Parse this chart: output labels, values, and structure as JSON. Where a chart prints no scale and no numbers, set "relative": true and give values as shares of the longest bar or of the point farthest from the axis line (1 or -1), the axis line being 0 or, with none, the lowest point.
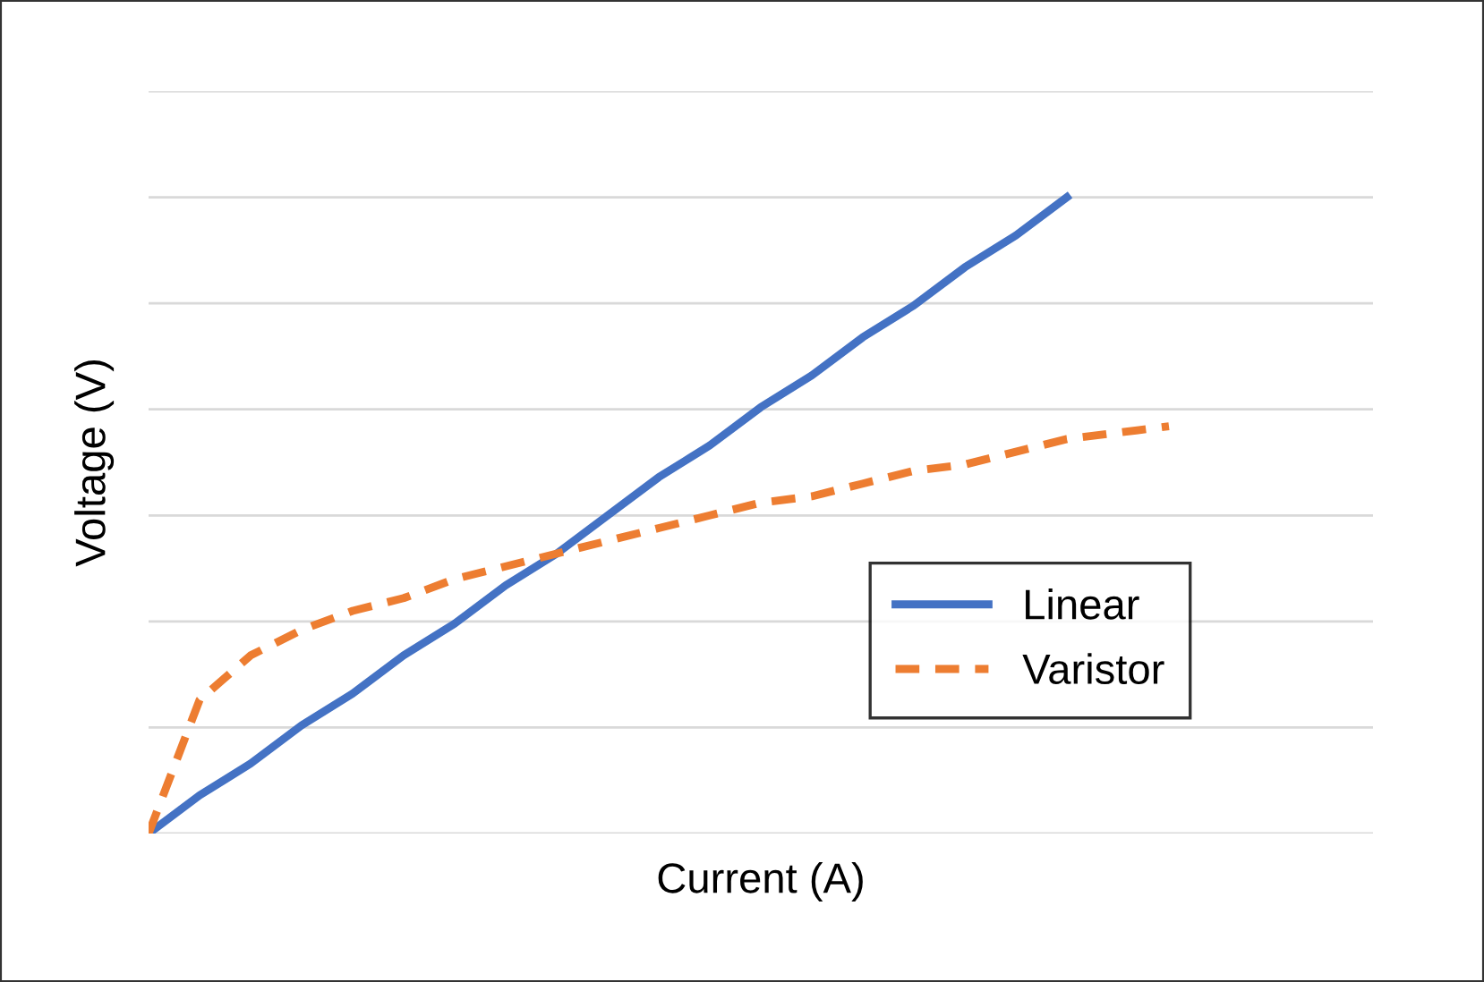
{
  "chart_data": {
    "type": "line",
    "relative": true,
    "xlabel": "Current (A)",
    "ylabel": "Voltage (V)",
    "categories": [
      null,
      null,
      null,
      null,
      null,
      null,
      null,
      null,
      null,
      null,
      null,
      null,
      null,
      null,
      null,
      null,
      null,
      null,
      null,
      null,
      null,
      null,
      null,
      null,
      null
    ],
    "series": [
      {
        "name": "Linear",
        "color": "#4472c4",
        "line_style": "solid",
        "values": [
          0,
          0.06,
          0.11,
          0.17,
          0.22,
          0.28,
          0.33,
          0.39,
          0.44,
          0.5,
          0.56,
          0.61,
          0.67,
          0.72,
          0.78,
          0.83,
          0.89,
          0.94,
          1,
          null,
          null,
          null,
          null,
          null,
          null
        ]
      },
      {
        "name": "Varistor",
        "color": "#ed7d31",
        "line_style": "dashed",
        "values": [
          0,
          0.21,
          0.28,
          0.32,
          0.35,
          0.37,
          0.4,
          0.42,
          0.44,
          0.46,
          0.48,
          0.5,
          0.52,
          0.53,
          0.55,
          0.57,
          0.58,
          0.6,
          0.62,
          0.63,
          0.64,
          null,
          null,
          null,
          null
        ]
      }
    ],
    "grid": "y",
    "legend": "right",
    "marker": "none"
  }
}
